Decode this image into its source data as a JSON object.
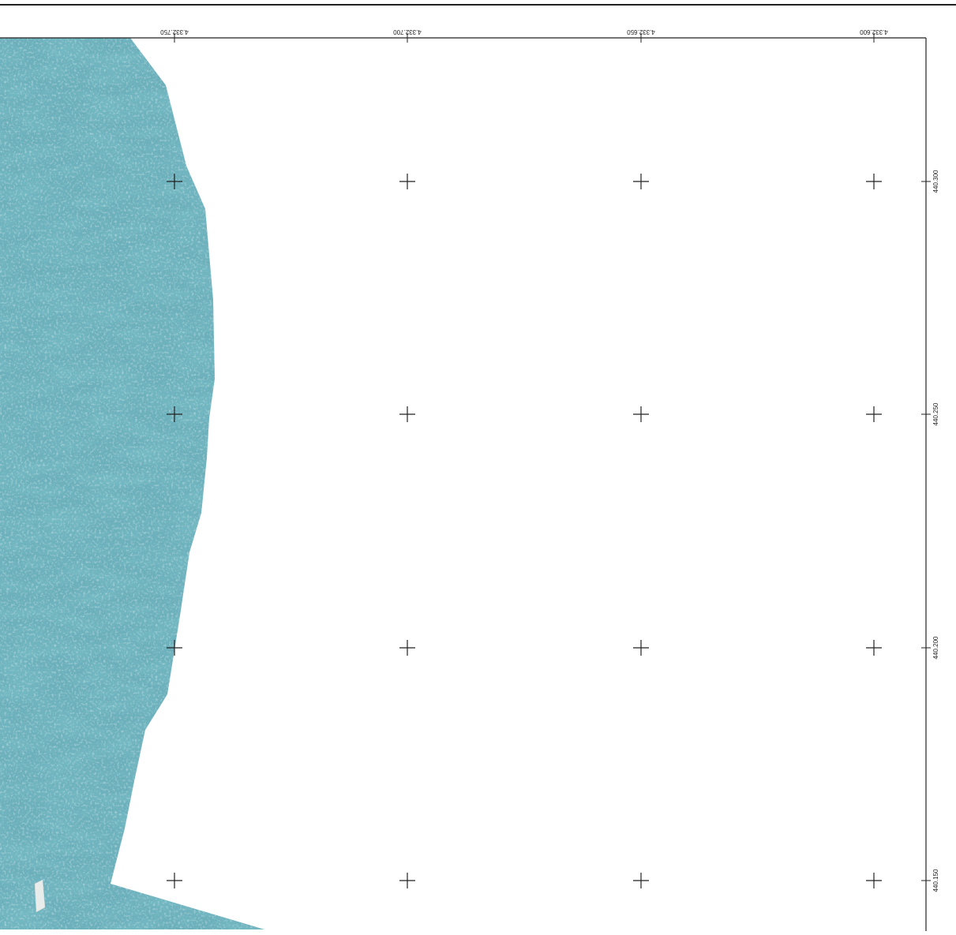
{
  "map": {
    "top_axis": {
      "labels": [
        "4.332.750",
        "4.332.700",
        "4.332.650",
        "4.332.600"
      ],
      "orientation": "rotated 180 degrees"
    },
    "right_axis": {
      "labels": [
        "440.300",
        "440.250",
        "440.200",
        "440.150"
      ],
      "orientation": "rotated -90 degrees"
    },
    "grid_markers": "plus-shaped crosses at every grid intersection",
    "imagery": {
      "description_colors": {
        "water": "#5fa7b4",
        "water_dark": "#2d7f8d",
        "water_light": "#a9cfd6"
      }
    },
    "frame_color": "#222222",
    "background_color": "#ffffff"
  }
}
